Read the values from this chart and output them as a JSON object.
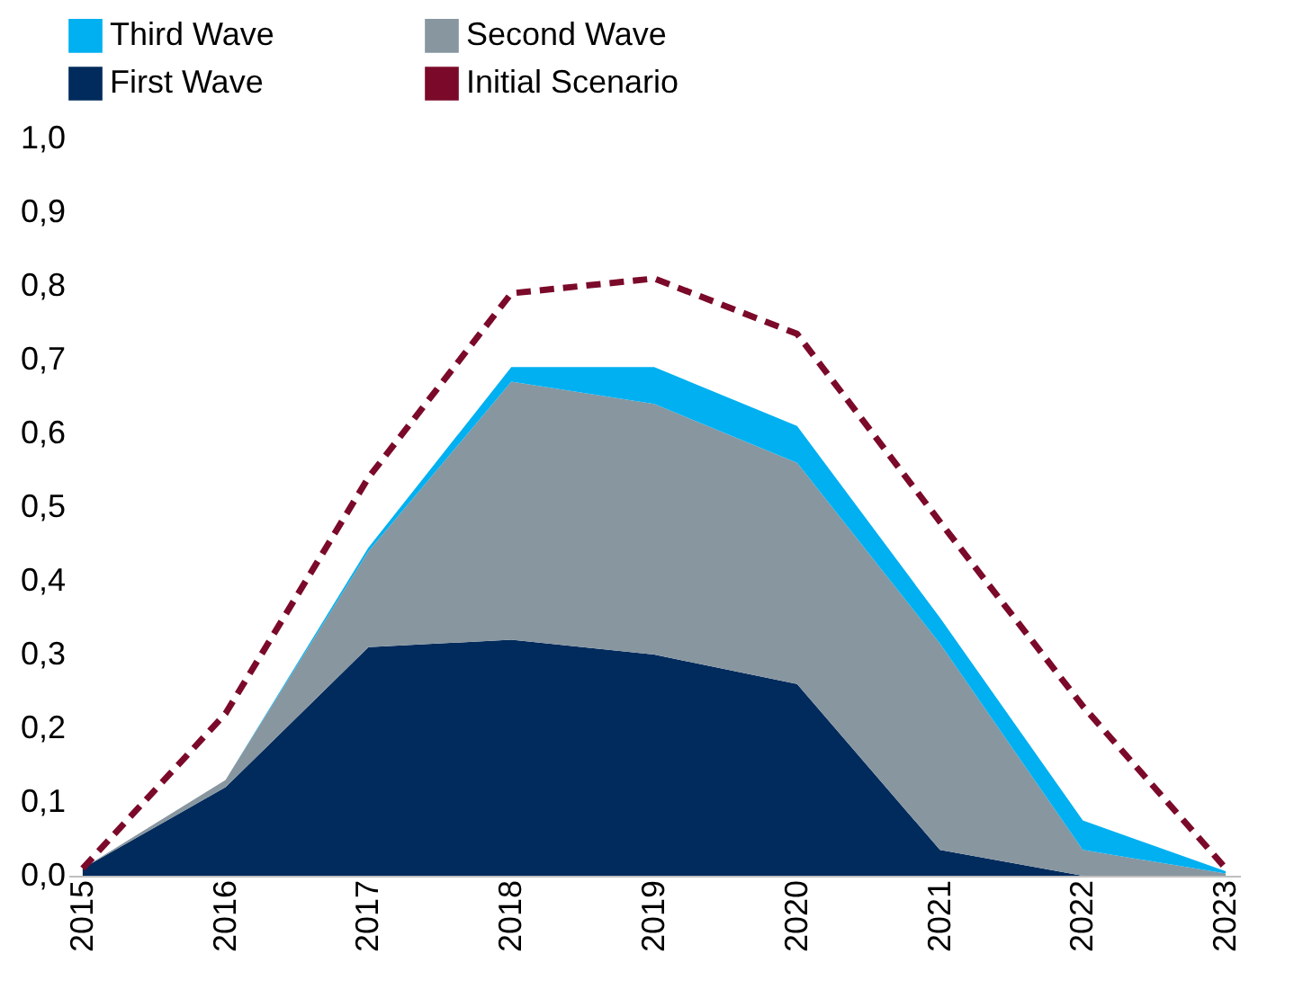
{
  "chart_data": {
    "type": "area",
    "stacked": true,
    "categories": [
      "2015",
      "2016",
      "2017",
      "2018",
      "2019",
      "2020",
      "2021",
      "2022",
      "2023"
    ],
    "series": [
      {
        "name": "First Wave",
        "color": "#002b5c",
        "values": [
          0.01,
          0.12,
          0.31,
          0.32,
          0.3,
          0.26,
          0.035,
          0,
          0
        ]
      },
      {
        "name": "Second Wave",
        "color": "#8896a0",
        "values": [
          0,
          0.01,
          0.13,
          0.35,
          0.34,
          0.3,
          0.28,
          0.035,
          0.003
        ]
      },
      {
        "name": "Third Wave",
        "color": "#00b0f0",
        "values": [
          0,
          0,
          0.005,
          0.02,
          0.05,
          0.05,
          0.035,
          0.04,
          0.003
        ]
      },
      {
        "name": "Initial Scenario",
        "color": "#7b0a2a",
        "type": "line",
        "line_style": "dashed",
        "values": [
          0.01,
          0.22,
          0.54,
          0.79,
          0.81,
          0.735,
          0.48,
          0.23,
          0.01
        ]
      }
    ],
    "ylim": [
      0,
      1
    ],
    "yticks": [
      {
        "value": 0,
        "label": "0,0"
      },
      {
        "value": 0.1,
        "label": "0,1"
      },
      {
        "value": 0.2,
        "label": "0,2"
      },
      {
        "value": 0.3,
        "label": "0,3"
      },
      {
        "value": 0.4,
        "label": "0,4"
      },
      {
        "value": 0.5,
        "label": "0,5"
      },
      {
        "value": 0.6,
        "label": "0,6"
      },
      {
        "value": 0.7,
        "label": "0,7"
      },
      {
        "value": 0.8,
        "label": "0,8"
      },
      {
        "value": 0.9,
        "label": "0,9"
      },
      {
        "value": 1,
        "label": "1,0"
      }
    ],
    "grid": false,
    "legend": "top"
  }
}
